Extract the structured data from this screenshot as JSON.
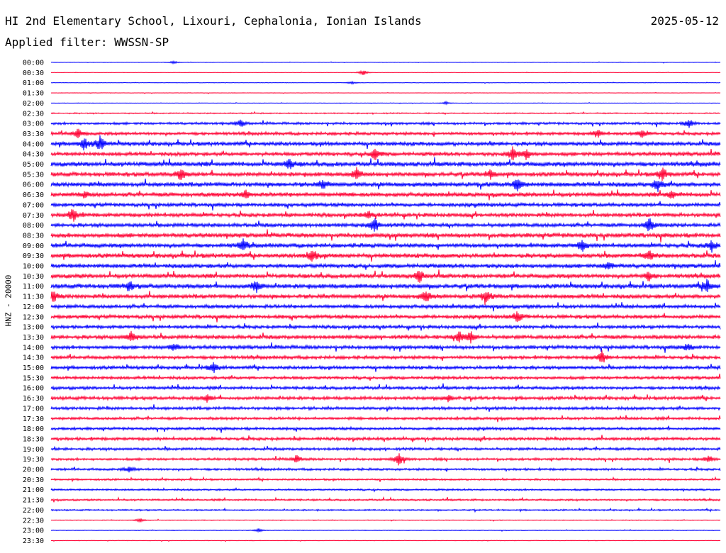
{
  "header": {
    "station": "HI 2nd Elementary School, Lixouri, Cephalonia, Ionian Islands",
    "date": "2025-05-12",
    "filter": "Applied filter: WWSSN-SP",
    "channel_label": "HNZ - 20000"
  },
  "colors": {
    "even_row": "#0000ff",
    "odd_row": "#ff0033",
    "text": "#000000"
  },
  "chart_data": {
    "type": "line",
    "title": "HI 2nd Elementary School, Lixouri, Cephalonia, Ionian Islands",
    "subtitle": "Applied filter: WWSSN-SP",
    "ylabel": "HNZ - 20000",
    "row_labels": [
      "00:00",
      "00:30",
      "01:00",
      "01:30",
      "02:00",
      "02:30",
      "03:00",
      "03:30",
      "04:00",
      "04:30",
      "05:00",
      "05:30",
      "06:00",
      "06:30",
      "07:00",
      "07:30",
      "08:00",
      "08:30",
      "09:00",
      "09:30",
      "10:00",
      "10:30",
      "11:00",
      "11:30",
      "12:00",
      "12:30",
      "13:00",
      "13:30",
      "14:00",
      "14:30",
      "15:00",
      "15:30",
      "16:00",
      "16:30",
      "17:00",
      "17:30",
      "18:00",
      "18:30",
      "19:00",
      "19:30",
      "20:00",
      "20:30",
      "21:00",
      "21:30",
      "22:00",
      "22:30",
      "23:00",
      "23:30"
    ],
    "noise_level": [
      0.3,
      0.3,
      0.3,
      0.3,
      0.3,
      0.8,
      1.6,
      2.0,
      2.6,
      2.5,
      3.0,
      2.8,
      3.0,
      2.8,
      2.4,
      2.6,
      2.6,
      3.0,
      2.8,
      3.0,
      2.8,
      2.8,
      3.0,
      2.8,
      2.4,
      2.4,
      2.2,
      2.6,
      2.4,
      2.2,
      2.2,
      2.0,
      2.0,
      2.2,
      2.0,
      1.8,
      1.8,
      2.0,
      1.8,
      1.6,
      1.5,
      1.2,
      1.2,
      1.2,
      1.0,
      0.5,
      0.4,
      0.4
    ],
    "events": [
      {
        "row": 0,
        "minute": 5.5,
        "amp": 2
      },
      {
        "row": 1,
        "minute": 14.0,
        "amp": 4
      },
      {
        "row": 2,
        "minute": 13.5,
        "amp": 2
      },
      {
        "row": 4,
        "minute": 17.7,
        "amp": 2
      },
      {
        "row": 6,
        "minute": 8.5,
        "amp": 5
      },
      {
        "row": 6,
        "minute": 28.6,
        "amp": 6
      },
      {
        "row": 7,
        "minute": 1.2,
        "amp": 7
      },
      {
        "row": 7,
        "minute": 24.5,
        "amp": 6
      },
      {
        "row": 7,
        "minute": 26.5,
        "amp": 6
      },
      {
        "row": 8,
        "minute": 1.5,
        "amp": 9
      },
      {
        "row": 8,
        "minute": 2.2,
        "amp": 10
      },
      {
        "row": 9,
        "minute": 14.5,
        "amp": 9
      },
      {
        "row": 9,
        "minute": 20.7,
        "amp": 9
      },
      {
        "row": 9,
        "minute": 21.3,
        "amp": 8
      },
      {
        "row": 10,
        "minute": 10.7,
        "amp": 7
      },
      {
        "row": 11,
        "minute": 5.8,
        "amp": 8
      },
      {
        "row": 11,
        "minute": 13.7,
        "amp": 8
      },
      {
        "row": 11,
        "minute": 19.7,
        "amp": 6
      },
      {
        "row": 11,
        "minute": 27.4,
        "amp": 10
      },
      {
        "row": 12,
        "minute": 12.2,
        "amp": 6
      },
      {
        "row": 12,
        "minute": 20.9,
        "amp": 9
      },
      {
        "row": 12,
        "minute": 27.2,
        "amp": 9
      },
      {
        "row": 13,
        "minute": 1.5,
        "amp": 5
      },
      {
        "row": 13,
        "minute": 8.7,
        "amp": 7
      },
      {
        "row": 13,
        "minute": 27.8,
        "amp": 6
      },
      {
        "row": 15,
        "minute": 1.0,
        "amp": 10
      },
      {
        "row": 15,
        "minute": 14.2,
        "amp": 5
      },
      {
        "row": 16,
        "minute": 14.5,
        "amp": 10
      },
      {
        "row": 16,
        "minute": 26.8,
        "amp": 10
      },
      {
        "row": 18,
        "minute": 8.6,
        "amp": 8
      },
      {
        "row": 18,
        "minute": 23.8,
        "amp": 8
      },
      {
        "row": 18,
        "minute": 29.6,
        "amp": 8
      },
      {
        "row": 19,
        "minute": 11.7,
        "amp": 10
      },
      {
        "row": 19,
        "minute": 26.8,
        "amp": 7
      },
      {
        "row": 20,
        "minute": 25.0,
        "amp": 6
      },
      {
        "row": 21,
        "minute": 16.5,
        "amp": 9
      },
      {
        "row": 21,
        "minute": 26.8,
        "amp": 7
      },
      {
        "row": 22,
        "minute": 3.5,
        "amp": 7
      },
      {
        "row": 22,
        "minute": 9.2,
        "amp": 9
      },
      {
        "row": 22,
        "minute": 29.4,
        "amp": 10
      },
      {
        "row": 23,
        "minute": 0.1,
        "amp": 8
      },
      {
        "row": 23,
        "minute": 16.8,
        "amp": 9
      },
      {
        "row": 23,
        "minute": 19.5,
        "amp": 9
      },
      {
        "row": 25,
        "minute": 20.9,
        "amp": 8
      },
      {
        "row": 27,
        "minute": 3.6,
        "amp": 8
      },
      {
        "row": 27,
        "minute": 18.3,
        "amp": 8
      },
      {
        "row": 27,
        "minute": 18.8,
        "amp": 8
      },
      {
        "row": 28,
        "minute": 5.5,
        "amp": 6
      },
      {
        "row": 28,
        "minute": 28.5,
        "amp": 5
      },
      {
        "row": 29,
        "minute": 24.7,
        "amp": 9
      },
      {
        "row": 30,
        "minute": 7.3,
        "amp": 8
      },
      {
        "row": 33,
        "minute": 7.0,
        "amp": 5
      },
      {
        "row": 33,
        "minute": 17.8,
        "amp": 5
      },
      {
        "row": 39,
        "minute": 11.0,
        "amp": 5
      },
      {
        "row": 39,
        "minute": 15.6,
        "amp": 9
      },
      {
        "row": 39,
        "minute": 29.5,
        "amp": 5
      },
      {
        "row": 40,
        "minute": 3.5,
        "amp": 4
      },
      {
        "row": 45,
        "minute": 4.0,
        "amp": 3
      },
      {
        "row": 46,
        "minute": 9.3,
        "amp": 3
      }
    ]
  }
}
